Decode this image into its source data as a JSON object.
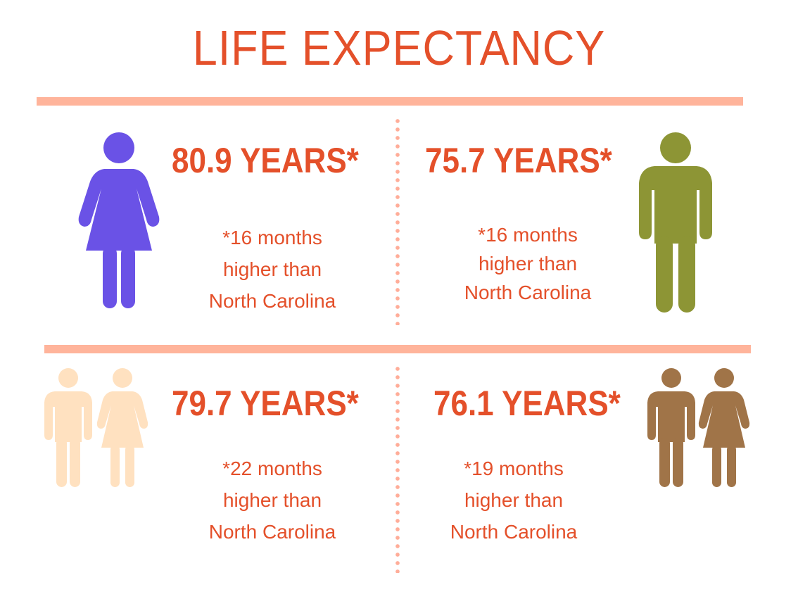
{
  "title": "LIFE EXPECTANCY",
  "panels": [
    {
      "years": "80.9 YEARS*",
      "note_line1": "*16 months",
      "note_line2": "higher than",
      "note_line3": "North Carolina",
      "icon": "female-figure-icon",
      "icon_color": "#6a52e6"
    },
    {
      "years": "75.7 YEARS*",
      "note_line1": "*16 months",
      "note_line2": "higher than",
      "note_line3": "North Carolina",
      "icon": "male-figure-icon",
      "icon_color": "#8d9535"
    },
    {
      "years": "79.7 YEARS*",
      "note_line1": "*22 months",
      "note_line2": "higher than",
      "note_line3": "North Carolina",
      "icon": "couple-figure-icon",
      "icon_color": "#ffe1c0"
    },
    {
      "years": "76.1 YEARS*",
      "note_line1": "*19 months",
      "note_line2": "higher than",
      "note_line3": "North Carolina",
      "icon": "couple-figure-icon",
      "icon_color": "#a07448"
    }
  ],
  "colors": {
    "accent": "#e4502a",
    "divider": "#ffb49b",
    "dots": "#ffad99"
  }
}
